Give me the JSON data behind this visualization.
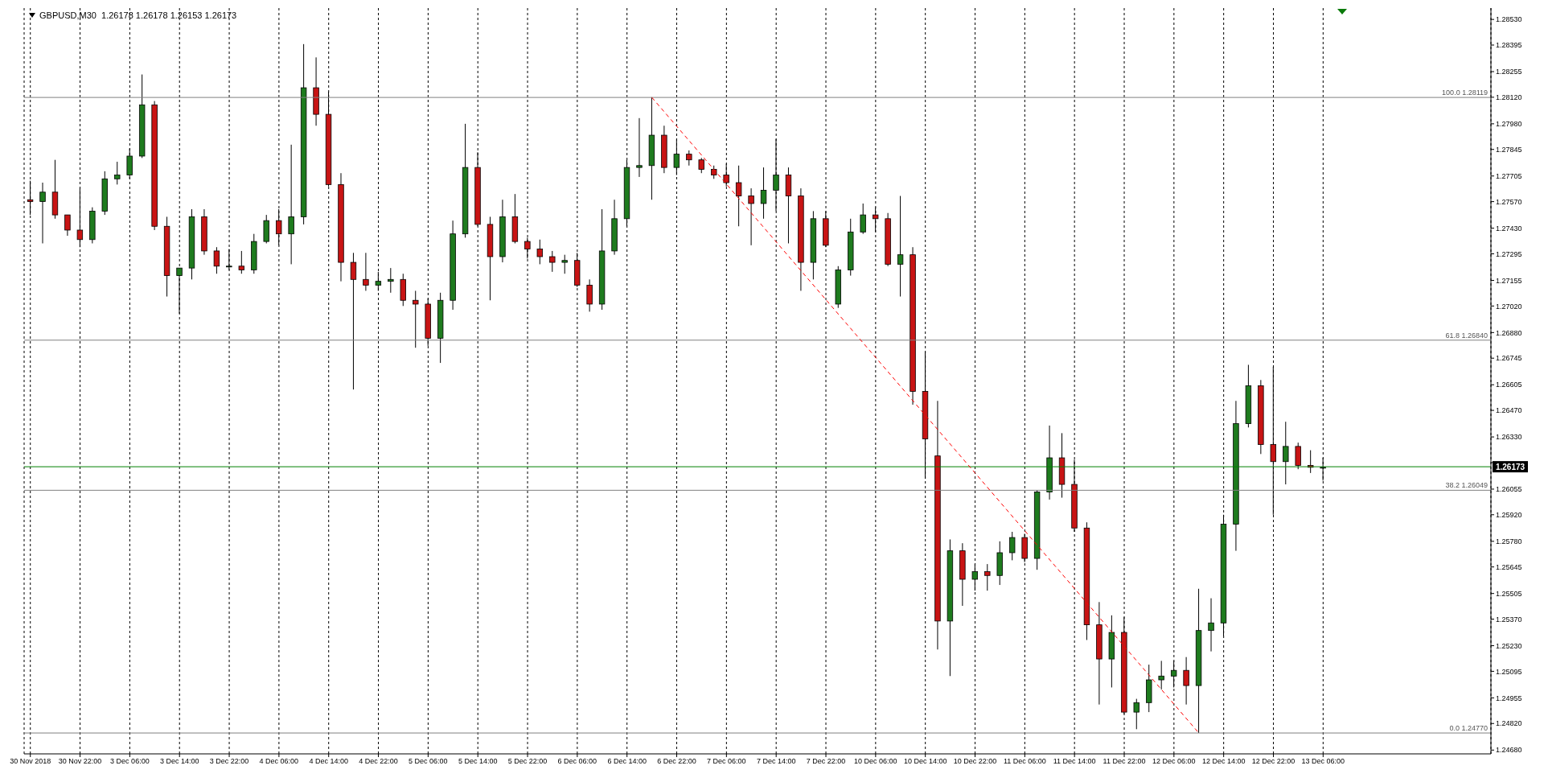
{
  "chart_data": {
    "type": "candlestick",
    "title": "GBPUSD,M30  1.26178 1.26178 1.26153 1.26173",
    "categories": [
      "30 Nov 2018",
      null,
      null,
      null,
      "30 Nov 22:00",
      null,
      null,
      null,
      "3 Dec 06:00",
      null,
      null,
      null,
      "3 Dec 14:00",
      null,
      null,
      null,
      "3 Dec 22:00",
      null,
      null,
      null,
      "4 Dec 06:00",
      null,
      null,
      null,
      "4 Dec 14:00",
      null,
      null,
      null,
      "4 Dec 22:00",
      null,
      null,
      null,
      "5 Dec 06:00",
      null,
      null,
      null,
      "5 Dec 14:00",
      null,
      null,
      null,
      "5 Dec 22:00",
      null,
      null,
      null,
      "6 Dec 06:00",
      null,
      null,
      null,
      "6 Dec 14:00",
      null,
      null,
      null,
      "6 Dec 22:00",
      null,
      null,
      null,
      "7 Dec 06:00",
      null,
      null,
      null,
      "7 Dec 14:00",
      null,
      null,
      null,
      "7 Dec 22:00",
      null,
      null,
      null,
      "10 Dec 06:00",
      null,
      null,
      null,
      "10 Dec 14:00",
      null,
      null,
      null,
      "10 Dec 22:00",
      null,
      null,
      null,
      "11 Dec 06:00",
      null,
      null,
      null,
      "11 Dec 14:00",
      null,
      null,
      null,
      "11 Dec 22:00",
      null,
      null,
      null,
      "12 Dec 06:00",
      null,
      null,
      null,
      "12 Dec 14:00",
      null,
      null,
      null,
      "12 Dec 22:00",
      null,
      null,
      null,
      "13 Dec 06:00",
      null,
      null,
      null,
      null,
      null,
      null,
      null,
      null,
      null,
      null,
      null,
      null,
      null
    ],
    "ohlc": [
      [
        1.2758,
        1.2768,
        1.275,
        1.2757
      ],
      [
        1.2757,
        1.2767,
        1.2735,
        1.2762
      ],
      [
        1.2762,
        1.2779,
        1.2748,
        1.275
      ],
      [
        1.275,
        1.275,
        1.2739,
        1.2742
      ],
      [
        1.2742,
        1.2764,
        1.2733,
        1.2737
      ],
      [
        1.2737,
        1.2754,
        1.2735,
        1.2752
      ],
      [
        1.2752,
        1.2773,
        1.275,
        1.2769
      ],
      [
        1.2769,
        1.2778,
        1.2766,
        1.2771
      ],
      [
        1.2771,
        1.2785,
        1.2769,
        1.2781
      ],
      [
        1.2781,
        1.2824,
        1.278,
        1.2808
      ],
      [
        1.2808,
        1.281,
        1.2742,
        1.2744
      ],
      [
        1.2744,
        1.2749,
        1.2707,
        1.2718
      ],
      [
        1.2718,
        1.2722,
        1.2698,
        1.2722
      ],
      [
        1.2722,
        1.2753,
        1.2716,
        1.2749
      ],
      [
        1.2749,
        1.2753,
        1.2729,
        1.2731
      ],
      [
        1.2731,
        1.2733,
        1.2719,
        1.2723
      ],
      [
        1.2723,
        1.2732,
        1.2721,
        1.2723
      ],
      [
        1.2723,
        1.2731,
        1.2719,
        1.2721
      ],
      [
        1.2721,
        1.274,
        1.2719,
        1.2736
      ],
      [
        1.2736,
        1.275,
        1.2735,
        1.2747
      ],
      [
        1.2747,
        1.2753,
        1.2734,
        1.274
      ],
      [
        1.274,
        1.2787,
        1.2724,
        1.2749
      ],
      [
        1.2749,
        1.284,
        1.2745,
        1.2817
      ],
      [
        1.2817,
        1.2833,
        1.2797,
        1.2803
      ],
      [
        1.2803,
        1.2815,
        1.2765,
        1.2766
      ],
      [
        1.2766,
        1.2772,
        1.2715,
        1.2725
      ],
      [
        1.2725,
        1.273,
        1.2658,
        1.2716
      ],
      [
        1.2716,
        1.273,
        1.271,
        1.2713
      ],
      [
        1.2713,
        1.272,
        1.271,
        1.2715
      ],
      [
        1.2715,
        1.2722,
        1.2709,
        1.2716
      ],
      [
        1.2716,
        1.2719,
        1.2702,
        1.2705
      ],
      [
        1.2705,
        1.271,
        1.268,
        1.2703
      ],
      [
        1.2703,
        1.2706,
        1.2681,
        1.2685
      ],
      [
        1.2685,
        1.2709,
        1.2672,
        1.2705
      ],
      [
        1.2705,
        1.2747,
        1.27,
        1.274
      ],
      [
        1.274,
        1.2798,
        1.2738,
        1.2775
      ],
      [
        1.2775,
        1.2783,
        1.2744,
        1.2745
      ],
      [
        1.2745,
        1.2749,
        1.2705,
        1.2728
      ],
      [
        1.2728,
        1.2758,
        1.2725,
        1.2749
      ],
      [
        1.2749,
        1.2761,
        1.2735,
        1.2736
      ],
      [
        1.2736,
        1.2738,
        1.2727,
        1.2732
      ],
      [
        1.2732,
        1.2737,
        1.2724,
        1.2728
      ],
      [
        1.2728,
        1.2731,
        1.272,
        1.2725
      ],
      [
        1.2725,
        1.2729,
        1.2719,
        1.2726
      ],
      [
        1.2726,
        1.273,
        1.2712,
        1.2713
      ],
      [
        1.2713,
        1.2716,
        1.2699,
        1.2703
      ],
      [
        1.2703,
        1.2753,
        1.27,
        1.2731
      ],
      [
        1.2731,
        1.2758,
        1.2729,
        1.2748
      ],
      [
        1.2748,
        1.2779,
        1.2744,
        1.2775
      ],
      [
        1.2775,
        1.2801,
        1.277,
        1.2776
      ],
      [
        1.2776,
        1.2812,
        1.2758,
        1.2792
      ],
      [
        1.2792,
        1.2797,
        1.2772,
        1.2775
      ],
      [
        1.2775,
        1.279,
        1.2771,
        1.2782
      ],
      [
        1.2782,
        1.2784,
        1.2776,
        1.2779
      ],
      [
        1.2779,
        1.278,
        1.2772,
        1.2774
      ],
      [
        1.2774,
        1.2776,
        1.2769,
        1.2771
      ],
      [
        1.2771,
        1.2777,
        1.2765,
        1.2767
      ],
      [
        1.2767,
        1.2776,
        1.2744,
        1.276
      ],
      [
        1.276,
        1.2764,
        1.2734,
        1.2756
      ],
      [
        1.2756,
        1.2775,
        1.2748,
        1.2763
      ],
      [
        1.2763,
        1.279,
        1.2752,
        1.2771
      ],
      [
        1.2771,
        1.2775,
        1.2735,
        1.276
      ],
      [
        1.276,
        1.2764,
        1.271,
        1.2725
      ],
      [
        1.2725,
        1.2752,
        1.2716,
        1.2748
      ],
      [
        1.2748,
        1.2752,
        1.2733,
        1.2734
      ],
      [
        1.2703,
        1.2723,
        1.2701,
        1.2721
      ],
      [
        1.2721,
        1.2748,
        1.2718,
        1.2741
      ],
      [
        1.2741,
        1.2756,
        1.274,
        1.275
      ],
      [
        1.275,
        1.2754,
        1.2741,
        1.2748
      ],
      [
        1.2748,
        1.2751,
        1.2723,
        1.2724
      ],
      [
        1.2724,
        1.276,
        1.2707,
        1.2729
      ],
      [
        1.2729,
        1.2733,
        1.265,
        1.2657
      ],
      [
        1.2657,
        1.2678,
        1.2611,
        1.2632
      ],
      [
        1.2623,
        1.2652,
        1.2521,
        1.2536
      ],
      [
        1.2536,
        1.2579,
        1.2507,
        1.2573
      ],
      [
        1.2573,
        1.2577,
        1.2544,
        1.2558
      ],
      [
        1.2558,
        1.2566,
        1.2552,
        1.2562
      ],
      [
        1.2562,
        1.2566,
        1.2552,
        1.256
      ],
      [
        1.256,
        1.2578,
        1.2555,
        1.2572
      ],
      [
        1.2572,
        1.2583,
        1.2568,
        1.258
      ],
      [
        1.258,
        1.2582,
        1.2567,
        1.2569
      ],
      [
        1.2569,
        1.2605,
        1.2563,
        1.2604
      ],
      [
        1.2604,
        1.2639,
        1.26,
        1.2622
      ],
      [
        1.2622,
        1.2635,
        1.2601,
        1.2608
      ],
      [
        1.2608,
        1.2621,
        1.2583,
        1.2585
      ],
      [
        1.2585,
        1.2588,
        1.2526,
        1.2534
      ],
      [
        1.2534,
        1.2546,
        1.2492,
        1.2516
      ],
      [
        1.2516,
        1.2539,
        1.2501,
        1.253
      ],
      [
        1.253,
        1.2538,
        1.2487,
        1.2488
      ],
      [
        1.2488,
        1.2495,
        1.2479,
        1.2493
      ],
      [
        1.2493,
        1.2513,
        1.2488,
        1.2505
      ],
      [
        1.2505,
        1.2515,
        1.25,
        1.2507
      ],
      [
        1.2507,
        1.2515,
        1.2501,
        1.251
      ],
      [
        1.251,
        1.2517,
        1.2492,
        1.2502
      ],
      [
        1.2502,
        1.2553,
        1.2477,
        1.2531
      ],
      [
        1.2531,
        1.2548,
        1.252,
        1.2535
      ],
      [
        1.2535,
        1.2592,
        1.2528,
        1.2587
      ],
      [
        1.2587,
        1.2652,
        1.2573,
        1.264
      ],
      [
        1.264,
        1.2671,
        1.2638,
        1.266
      ],
      [
        1.266,
        1.2663,
        1.2624,
        1.2629
      ],
      [
        1.2629,
        1.267,
        1.2592,
        1.262
      ],
      [
        1.262,
        1.2641,
        1.2608,
        1.2628
      ],
      [
        1.2628,
        1.263,
        1.2616,
        1.2618
      ],
      [
        1.2618,
        1.2626,
        1.2614,
        1.2617
      ],
      [
        1.2617,
        1.2622,
        1.261,
        1.2617
      ],
      null,
      null,
      null,
      null,
      null,
      null,
      null,
      null,
      null,
      null,
      null,
      null,
      null
    ],
    "series": [
      {
        "type": "line",
        "color": "#ff0000",
        "line_style": "dashed",
        "values": [
          null,
          null,
          null,
          null,
          null,
          null,
          null,
          null,
          null,
          null,
          null,
          null,
          null,
          null,
          null,
          null,
          null,
          null,
          null,
          null,
          null,
          null,
          null,
          null,
          null,
          null,
          null,
          null,
          null,
          null,
          null,
          null,
          null,
          null,
          null,
          null,
          null,
          null,
          null,
          null,
          null,
          null,
          null,
          null,
          null,
          null,
          null,
          null,
          null,
          null,
          1.28119,
          null,
          null,
          null,
          null,
          null,
          null,
          null,
          null,
          null,
          null,
          null,
          null,
          null,
          null,
          null,
          null,
          null,
          null,
          null,
          null,
          null,
          null,
          null,
          null,
          null,
          null,
          null,
          null,
          null,
          null,
          null,
          null,
          null,
          null,
          null,
          null,
          null,
          null,
          null,
          null,
          null,
          null,
          null,
          1.2477,
          null,
          null,
          null,
          null,
          null,
          null,
          null,
          null,
          null,
          null,
          null,
          null,
          null,
          null,
          null,
          null,
          null,
          null,
          null,
          null,
          null,
          null,
          null
        ]
      }
    ],
    "ylim": [
      1.2466,
      1.2859
    ],
    "yticks": [
      {
        "value": 1.2853,
        "label": "1.28530"
      },
      {
        "value": 1.28395,
        "label": "1.28395"
      },
      {
        "value": 1.28255,
        "label": "1.28255"
      },
      {
        "value": 1.2812,
        "label": "1.28120"
      },
      {
        "value": 1.2798,
        "label": "1.27980"
      },
      {
        "value": 1.27845,
        "label": "1.27845"
      },
      {
        "value": 1.27705,
        "label": "1.27705"
      },
      {
        "value": 1.2757,
        "label": "1.27570"
      },
      {
        "value": 1.2743,
        "label": "1.27430"
      },
      {
        "value": 1.27295,
        "label": "1.27295"
      },
      {
        "value": 1.27155,
        "label": "1.27155"
      },
      {
        "value": 1.2702,
        "label": "1.27020"
      },
      {
        "value": 1.2688,
        "label": "1.26880"
      },
      {
        "value": 1.26745,
        "label": "1.26745"
      },
      {
        "value": 1.26605,
        "label": "1.26605"
      },
      {
        "value": 1.2647,
        "label": "1.26470"
      },
      {
        "value": 1.2633,
        "label": "1.26330"
      },
      {
        "value": 1.26195,
        "label": null
      },
      {
        "value": 1.26055,
        "label": "1.26055"
      },
      {
        "value": 1.2592,
        "label": "1.25920"
      },
      {
        "value": 1.2578,
        "label": "1.25780"
      },
      {
        "value": 1.25645,
        "label": "1.25645"
      },
      {
        "value": 1.25505,
        "label": "1.25505"
      },
      {
        "value": 1.2537,
        "label": "1.25370"
      },
      {
        "value": 1.2523,
        "label": "1.25230"
      },
      {
        "value": 1.25095,
        "label": "1.25095"
      },
      {
        "value": 1.24955,
        "label": "1.24955"
      },
      {
        "value": 1.2482,
        "label": "1.24820"
      },
      {
        "value": 1.2468,
        "label": "1.24680"
      }
    ],
    "ref_lines": [
      {
        "axis": "y",
        "value": 1.28119,
        "label": "100.0 1.28119",
        "color": "#808080"
      },
      {
        "axis": "y",
        "value": 1.2684,
        "label": "61.8 1.26840",
        "color": "#808080"
      },
      {
        "axis": "y",
        "value": 1.26049,
        "label": "38.2 1.26049",
        "color": "#808080"
      },
      {
        "axis": "y",
        "value": 1.2477,
        "label": "0.0 1.24770",
        "color": "#808080"
      },
      {
        "axis": "y",
        "value": 1.26173,
        "color": "#008000"
      }
    ],
    "annotations": [
      {
        "text": "1.26173",
        "y": 1.26173
      }
    ],
    "grid": "x"
  }
}
